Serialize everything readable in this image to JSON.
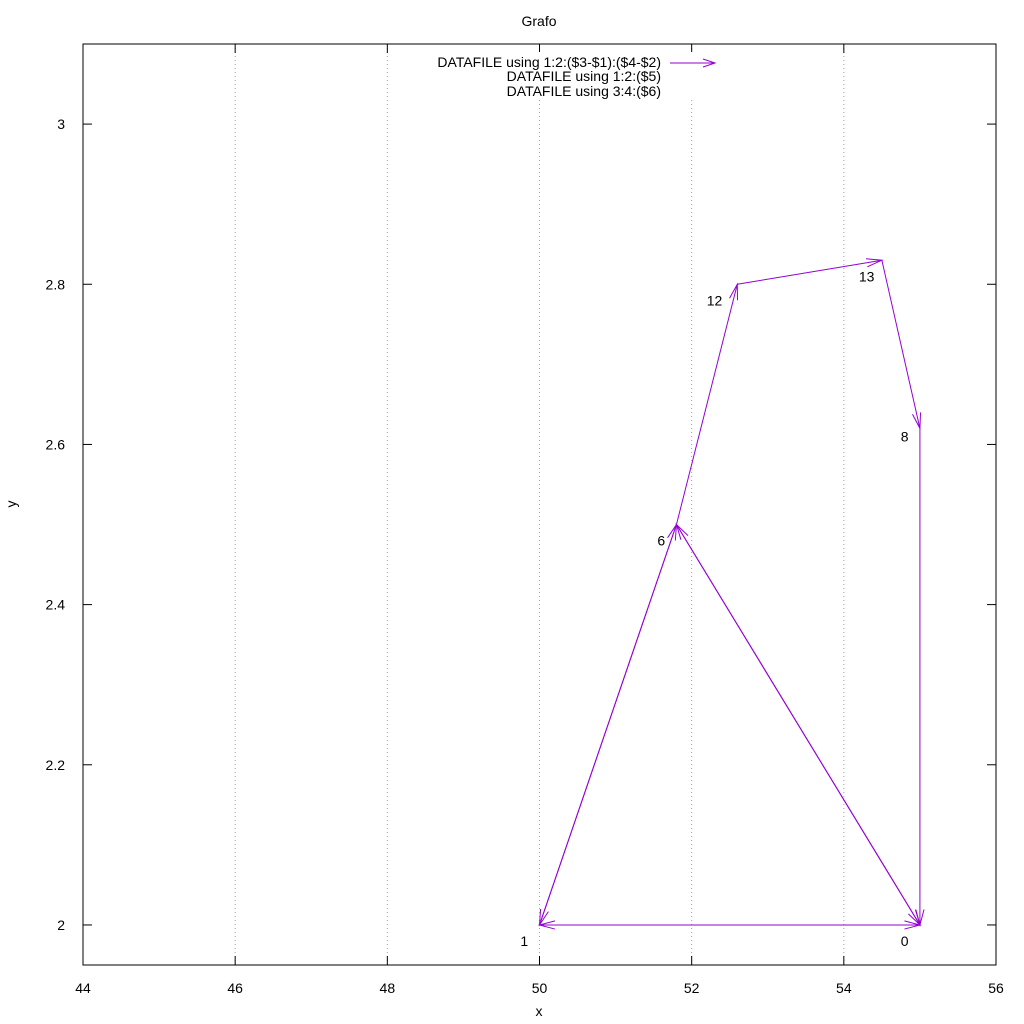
{
  "chart_data": {
    "type": "vector",
    "title": "Grafo",
    "xlabel": "x",
    "ylabel": "y",
    "xlim": [
      44,
      56
    ],
    "ylim": [
      1.95,
      3.1
    ],
    "grid": {
      "x": true,
      "y": false
    },
    "legend_placement": "top-center",
    "x_ticks": [
      "44",
      "46",
      "48",
      "50",
      "52",
      "54",
      "56"
    ],
    "y_ticks": [
      "2",
      "2.2",
      "2.4",
      "2.6",
      "2.8",
      "3"
    ],
    "x_tick_values": [
      44,
      46,
      48,
      50,
      52,
      54,
      56
    ],
    "y_tick_values": [
      2,
      2.2,
      2.4,
      2.6,
      2.8,
      3
    ],
    "legend": [
      "DATAFILE using 1:2:($3-$1):($4-$2)",
      "DATAFILE using 1:2:($5)",
      "DATAFILE using 3:4:($6)"
    ],
    "series_color": "#9400d3",
    "arrows": [
      {
        "x1": 55,
        "y1": 2.0,
        "x2": 50,
        "y2": 2.0
      },
      {
        "x1": 50,
        "y1": 2.0,
        "x2": 55,
        "y2": 2.0
      },
      {
        "x1": 50,
        "y1": 2.0,
        "x2": 51.8,
        "y2": 2.5
      },
      {
        "x1": 51.8,
        "y1": 2.5,
        "x2": 50,
        "y2": 2.0
      },
      {
        "x1": 51.8,
        "y1": 2.5,
        "x2": 52.6,
        "y2": 2.8
      },
      {
        "x1": 55,
        "y1": 2.0,
        "x2": 51.8,
        "y2": 2.5
      },
      {
        "x1": 51.8,
        "y1": 2.5,
        "x2": 55,
        "y2": 2.0
      },
      {
        "x1": 52.6,
        "y1": 2.8,
        "x2": 54.5,
        "y2": 2.83
      },
      {
        "x1": 54.5,
        "y1": 2.83,
        "x2": 55,
        "y2": 2.62
      },
      {
        "x1": 55,
        "y1": 2.62,
        "x2": 55,
        "y2": 2.0
      }
    ],
    "point_labels": [
      {
        "text": "0",
        "x": 54.8,
        "y": 1.98
      },
      {
        "text": "1",
        "x": 49.8,
        "y": 1.98
      },
      {
        "text": "6",
        "x": 51.6,
        "y": 2.48
      },
      {
        "text": "12",
        "x": 52.3,
        "y": 2.78
      },
      {
        "text": "13",
        "x": 54.3,
        "y": 2.81
      },
      {
        "text": "8",
        "x": 54.8,
        "y": 2.61
      }
    ]
  }
}
